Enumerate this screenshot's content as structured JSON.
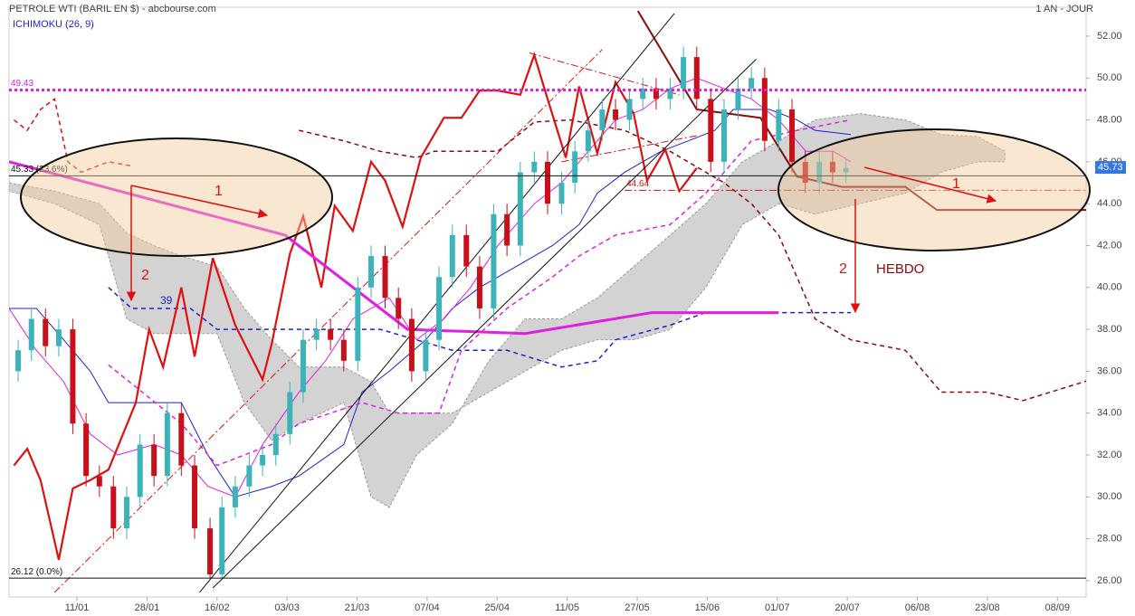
{
  "chart_data": {
    "type": "candlestick",
    "title": "PETROLE WTI (BARIL EN $) - abcbourse.com",
    "period": "1 AN - JOUR",
    "indicator": "ICHIMOKU (26, 9)",
    "xlim": [
      -0.97,
      14.41
    ],
    "ylim": [
      25.22,
      53.38
    ],
    "xticks": [
      {
        "value": 0,
        "label": "11/01"
      },
      {
        "value": 1,
        "label": "28/01"
      },
      {
        "value": 2,
        "label": "16/02"
      },
      {
        "value": 3,
        "label": "03/03"
      },
      {
        "value": 4,
        "label": "21/03"
      },
      {
        "value": 5,
        "label": "07/04"
      },
      {
        "value": 6,
        "label": "25/04"
      },
      {
        "value": 7,
        "label": "11/05"
      },
      {
        "value": 8,
        "label": "27/05"
      },
      {
        "value": 9,
        "label": "15/06"
      },
      {
        "value": 10,
        "label": "01/07"
      },
      {
        "value": 11,
        "label": "20/07"
      },
      {
        "value": 12,
        "label": "06/08"
      },
      {
        "value": 13,
        "label": "23/08"
      },
      {
        "value": 14,
        "label": "08/09"
      }
    ],
    "yticks": [
      {
        "value": 26,
        "label": "26.00"
      },
      {
        "value": 28,
        "label": "28.00"
      },
      {
        "value": 30,
        "label": "30.00"
      },
      {
        "value": 32,
        "label": "32.00"
      },
      {
        "value": 34,
        "label": "34.00"
      },
      {
        "value": 36,
        "label": "36.00"
      },
      {
        "value": 38,
        "label": "38.00"
      },
      {
        "value": 40,
        "label": "40.00"
      },
      {
        "value": 42,
        "label": "42.00"
      },
      {
        "value": 44,
        "label": "44.00"
      },
      {
        "value": 46,
        "label": "46.00"
      },
      {
        "value": 48,
        "label": "48.00"
      },
      {
        "value": 50,
        "label": "50.00"
      },
      {
        "value": 52,
        "label": "52.00"
      }
    ],
    "up_color": "#3bb3b9",
    "down_color": "#c8101a",
    "candles": {
      "x": [
        -0.84,
        -0.65,
        -0.45,
        -0.26,
        -0.06,
        0.13,
        0.32,
        0.52,
        0.71,
        0.9,
        1.1,
        1.29,
        1.49,
        1.68,
        1.9,
        2.07,
        2.26,
        2.46,
        2.65,
        2.84,
        3.04,
        3.23,
        3.42,
        3.62,
        3.81,
        4.01,
        4.2,
        4.4,
        4.59,
        4.78,
        4.98,
        5.17,
        5.36,
        5.56,
        5.75,
        5.95,
        6.14,
        6.33,
        6.53,
        6.72,
        6.92,
        7.11,
        7.3,
        7.5,
        7.69,
        7.89,
        8.08,
        8.27,
        8.47,
        8.66,
        8.85,
        9.05,
        9.24,
        9.44,
        9.63,
        9.82,
        10.02,
        10.21,
        10.4,
        10.6,
        10.79,
        10.98
      ],
      "open": [
        36.0,
        37.0,
        38.5,
        37.2,
        38.0,
        33.5,
        31.0,
        30.5,
        28.5,
        30.0,
        32.5,
        31.0,
        34.0,
        31.5,
        28.5,
        26.3,
        29.5,
        30.5,
        31.5,
        32.0,
        33.0,
        35.0,
        37.5,
        38.0,
        37.5,
        36.5,
        40.0,
        41.5,
        39.5,
        38.5,
        36.0,
        37.5,
        40.5,
        42.5,
        41.0,
        39.0,
        43.5,
        42.0,
        45.5,
        46.0,
        44.0,
        45.0,
        46.5,
        47.5,
        48.5,
        48.0,
        49.0,
        49.5,
        49.0,
        49.5,
        51.0,
        49.0,
        46.0,
        48.5,
        49.5,
        50.0,
        47.0,
        48.5,
        46.0,
        45.0,
        46.0,
        45.5
      ],
      "high": [
        37.5,
        39.0,
        39.0,
        38.5,
        38.5,
        34.0,
        31.5,
        31.0,
        30.5,
        33.0,
        33.0,
        34.5,
        34.5,
        32.0,
        29.0,
        30.0,
        31.0,
        32.0,
        32.5,
        33.5,
        35.5,
        38.0,
        38.5,
        38.5,
        38.0,
        40.5,
        42.0,
        42.0,
        40.0,
        39.0,
        38.0,
        41.0,
        43.0,
        43.0,
        41.5,
        44.0,
        44.0,
        46.0,
        46.5,
        46.5,
        45.5,
        47.0,
        48.0,
        49.0,
        49.0,
        49.5,
        50.0,
        50.0,
        50.0,
        51.5,
        51.5,
        49.5,
        49.0,
        50.0,
        50.5,
        50.5,
        49.0,
        49.0,
        46.5,
        46.5,
        46.5,
        46.2
      ],
      "low": [
        35.5,
        36.5,
        36.7,
        36.7,
        33.0,
        30.5,
        30.0,
        28.0,
        28.0,
        29.5,
        30.5,
        30.5,
        31.0,
        28.0,
        26.1,
        26.1,
        29.0,
        30.0,
        31.0,
        31.5,
        32.5,
        34.5,
        37.0,
        37.0,
        36.0,
        36.0,
        39.5,
        39.0,
        38.0,
        35.5,
        35.5,
        37.0,
        40.0,
        40.5,
        38.5,
        38.5,
        41.5,
        41.5,
        45.0,
        43.5,
        43.5,
        44.5,
        46.0,
        47.0,
        47.5,
        47.5,
        48.5,
        48.5,
        48.5,
        49.0,
        48.5,
        45.5,
        45.5,
        48.0,
        49.0,
        46.5,
        46.5,
        45.5,
        44.5,
        44.5,
        45.0,
        45.0
      ],
      "close": [
        37.0,
        38.5,
        37.2,
        38.0,
        33.5,
        31.0,
        30.5,
        28.5,
        30.0,
        32.5,
        31.0,
        34.0,
        31.5,
        28.5,
        26.3,
        29.5,
        30.5,
        31.5,
        32.0,
        33.0,
        35.0,
        37.5,
        38.0,
        37.5,
        36.5,
        40.0,
        41.5,
        39.5,
        38.5,
        36.0,
        37.5,
        40.5,
        42.5,
        41.0,
        39.0,
        43.5,
        42.0,
        45.5,
        46.0,
        44.0,
        45.0,
        46.5,
        47.5,
        48.5,
        48.0,
        49.0,
        49.5,
        49.0,
        49.5,
        51.0,
        49.0,
        46.0,
        48.5,
        49.5,
        50.0,
        47.0,
        48.5,
        46.0,
        45.0,
        46.0,
        45.5,
        45.7
      ]
    },
    "cloud": {
      "color": "#d3d3d3",
      "x": [
        -0.97,
        -0.32,
        0.32,
        0.71,
        1.1,
        1.49,
        2.0,
        2.39,
        2.78,
        3.17,
        3.81,
        4.2,
        4.46,
        4.85,
        5.36,
        5.88,
        6.4,
        6.92,
        7.43,
        7.95,
        8.47,
        8.98,
        9.5,
        10.02,
        10.54,
        11.18,
        11.83,
        12.34,
        12.86,
        13.25
      ],
      "span_a": [
        45.0,
        44.6,
        44.0,
        42.6,
        42.0,
        41.5,
        41.0,
        39.0,
        37.5,
        36.2,
        36.2,
        35.5,
        34.0,
        34.0,
        34.0,
        35.0,
        36.0,
        37.0,
        37.5,
        37.5,
        38.0,
        40.0,
        43.0,
        44.0,
        43.5,
        44.0,
        44.5,
        45.5,
        46.0,
        46.0
      ],
      "span_b": [
        44.6,
        44.0,
        43.0,
        38.5,
        37.8,
        37.8,
        37.8,
        34.5,
        32.7,
        33.5,
        34.5,
        30.0,
        29.5,
        32.0,
        33.5,
        36.5,
        38.5,
        38.5,
        39.5,
        41.0,
        42.5,
        44.0,
        46.0,
        47.0,
        48.0,
        48.3,
        48.0,
        47.3,
        47.2,
        46.5
      ]
    },
    "lines": [
      {
        "color": "#1f1fd0",
        "width": 1,
        "dash": "solid",
        "x": [
          -0.97,
          -0.58,
          -0.19,
          0.19,
          0.45,
          1.49,
          1.87,
          2.26,
          2.78,
          3.17,
          3.81,
          4.07,
          4.46,
          4.98,
          5.36,
          5.75,
          6.27,
          6.79,
          7.17,
          7.43,
          7.82,
          8.34,
          8.73,
          9.11,
          9.37,
          9.89,
          10.28,
          10.54,
          11.05
        ],
        "values": [
          39.0,
          39.0,
          37.5,
          36.0,
          34.5,
          34.5,
          32.0,
          30.0,
          30.5,
          31.0,
          32.5,
          35.0,
          36.0,
          37.5,
          39.0,
          40.0,
          41.0,
          42.0,
          43.0,
          44.5,
          45.5,
          46.5,
          47.0,
          47.5,
          48.5,
          48.5,
          48.0,
          47.5,
          47.3
        ]
      },
      {
        "color": "#e020e0",
        "width": 1,
        "dash": "solid",
        "x": [
          -0.97,
          -0.58,
          -0.19,
          0.19,
          0.58,
          1.1,
          1.49,
          1.87,
          2.26,
          2.65,
          3.17,
          3.55,
          3.94,
          4.46,
          4.85,
          5.24,
          5.62,
          6.01,
          6.53,
          6.92,
          7.3,
          7.69,
          8.08,
          8.47,
          8.85,
          9.24,
          9.63,
          10.02,
          10.41,
          10.8,
          11.05
        ],
        "values": [
          39.0,
          37.0,
          35.5,
          33.0,
          32.0,
          32.5,
          32.0,
          30.5,
          30.0,
          32.5,
          35.0,
          36.5,
          38.5,
          39.5,
          37.5,
          38.5,
          40.0,
          42.0,
          44.0,
          45.0,
          46.5,
          48.0,
          48.5,
          49.5,
          50.0,
          49.5,
          49.0,
          48.0,
          46.5,
          46.5,
          46.0
        ]
      },
      {
        "color": "#e020e0",
        "width": 1.5,
        "dash": "dashed",
        "x": [
          0.45,
          1.49,
          2.0,
          2.78,
          3.17,
          4.07,
          4.59,
          5.17,
          5.49,
          6.14,
          6.79,
          7.17,
          7.69,
          8.47,
          8.98,
          9.24,
          9.63,
          10.28,
          11.05
        ],
        "values": [
          36.3,
          33.5,
          31.5,
          32.5,
          33.5,
          34.5,
          34.0,
          34.0,
          37.0,
          39.0,
          40.5,
          41.5,
          42.5,
          43.0,
          44.5,
          45.5,
          47.0,
          47.5,
          48.0
        ]
      },
      {
        "color": "#1f1fd0",
        "width": 1.5,
        "dash": "dashed",
        "x": [
          0.45,
          0.78,
          1.62,
          2.0,
          2.78,
          4.33,
          5.36,
          6.14,
          6.92,
          7.43,
          7.69,
          8.47,
          8.98,
          10.02,
          11.05
        ],
        "values": [
          40.0,
          39.0,
          39.0,
          38.0,
          38.0,
          38.0,
          37.0,
          37.0,
          36.2,
          36.5,
          37.5,
          38.2,
          38.8,
          38.8,
          38.8
        ]
      },
      {
        "color": "#e01010",
        "width": 1.5,
        "dash": "dashed",
        "x": [
          -0.9,
          -0.71,
          -0.52,
          -0.32,
          -0.13,
          0.06,
          0.45,
          0.78
        ],
        "values": [
          48.0,
          47.5,
          48.5,
          49.0,
          46.0,
          45.5,
          46.0,
          45.8
        ]
      },
      {
        "color": "#8b0a0a",
        "width": 1.5,
        "dash": "dashed",
        "x": [
          3.17,
          3.81,
          4.33,
          4.85,
          5.1,
          6.01,
          6.53,
          7.04,
          7.82,
          8.47,
          8.98,
          9.24,
          9.63,
          10.02,
          10.28,
          10.54,
          11.05,
          11.83,
          12.34,
          12.99,
          13.51,
          14.48
        ],
        "values": [
          47.5,
          47.0,
          46.5,
          46.2,
          46.5,
          46.5,
          47.9,
          48.0,
          47.5,
          46.5,
          45.5,
          45.0,
          44.0,
          42.5,
          40.5,
          38.5,
          37.5,
          37.0,
          35.0,
          35.0,
          34.6,
          35.6
        ]
      },
      {
        "color": "#e01010",
        "width": 2.2,
        "dash": "solid",
        "x": [
          -0.9,
          -0.71,
          -0.52,
          -0.26,
          -0.06,
          0.19,
          0.45,
          0.84,
          1.03,
          1.23,
          1.49,
          1.68,
          1.94,
          2.26,
          2.65,
          2.78,
          3.04,
          3.23,
          3.49,
          3.68,
          3.94,
          4.2,
          4.4,
          4.65,
          4.91,
          5.24,
          5.49,
          5.75,
          6.01,
          6.33,
          6.53,
          6.72,
          6.98,
          7.17,
          7.43,
          7.69,
          7.95,
          8.14,
          8.4,
          8.6,
          8.85
        ],
        "values": [
          31.5,
          32.3,
          30.8,
          27.0,
          30.4,
          30.8,
          31.3,
          34.5,
          38.0,
          36.2,
          40.0,
          36.7,
          41.4,
          38.2,
          35.6,
          37.3,
          41.6,
          43.4,
          40.0,
          43.9,
          42.7,
          46.0,
          45.1,
          42.9,
          46.2,
          48.1,
          48.1,
          49.4,
          49.4,
          49.2,
          51.1,
          49.0,
          46.2,
          49.6,
          46.4,
          49.8,
          48.3,
          45.1,
          46.6,
          44.6,
          45.7
        ]
      },
      {
        "color": "#e020e0",
        "width": 3,
        "dash": "solid",
        "x": [
          -0.97,
          2.97,
          4.72,
          6.4,
          8.21,
          10.02
        ],
        "values": [
          46.0,
          42.5,
          38.0,
          37.8,
          38.8,
          38.8
        ]
      },
      {
        "color": "#8b0a0a",
        "width": 2,
        "dash": "solid",
        "x": [
          8.01,
          8.85,
          9.76,
          10.28,
          10.92,
          11.83,
          12.28,
          14.41
        ],
        "values": [
          53.2,
          48.5,
          48.1,
          45.3,
          44.8,
          44.8,
          43.7,
          43.7
        ]
      },
      {
        "color": "#111111",
        "width": 1,
        "dash": "solid",
        "x": [
          1.75,
          8.53
        ],
        "values": [
          25.44,
          53.08
        ]
      },
      {
        "color": "#111111",
        "width": 1,
        "dash": "solid",
        "x": [
          1.94,
          9.7
        ],
        "values": [
          25.65,
          50.9
        ]
      },
      {
        "color": "#e01010",
        "width": 1,
        "dash": "dashdot",
        "x": [
          -0.32,
          7.5
        ],
        "values": [
          25.44,
          51.36
        ]
      },
      {
        "color": "#e01010",
        "width": 1,
        "dash": "dashdot",
        "x": [
          6.46,
          8.6
        ],
        "values": [
          51.2,
          49.2
        ]
      },
      {
        "color": "#e01010",
        "width": 1,
        "dash": "dashdot",
        "x": [
          6.92,
          8.85
        ],
        "values": [
          46.0,
          47.25
        ]
      }
    ],
    "levels": [
      {
        "value": 49.43,
        "label": "49.43",
        "color": "#e020e0",
        "dash": "dotted",
        "width": 3,
        "x0": -0.97
      },
      {
        "value": 45.33,
        "label": "45.33  (23.6%)",
        "color": "#111111",
        "dash": "solid",
        "width": 1,
        "x0": -0.97
      },
      {
        "value": 26.12,
        "label": "26.12  (0.0%)",
        "color": "#111111",
        "dash": "solid",
        "width": 1,
        "x0": -0.97
      },
      {
        "value": 44.64,
        "label": "44.64",
        "color": "#e01010",
        "dash": "dashdot",
        "width": 1,
        "x0": 7.82
      }
    ],
    "last": {
      "value": 45.73,
      "label": "45.73",
      "color": "#3377dd"
    },
    "annotations": [
      "1",
      "2",
      "39",
      "1",
      "2",
      "HEBDO"
    ]
  }
}
